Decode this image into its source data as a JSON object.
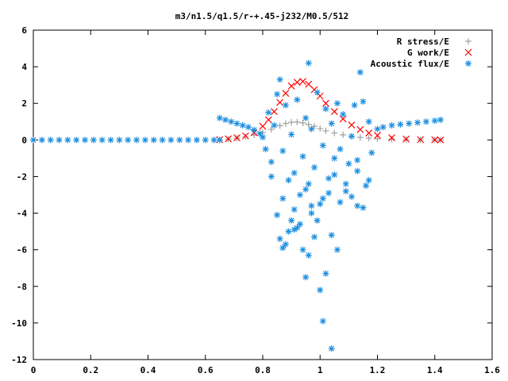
{
  "chart_data": {
    "type": "scatter",
    "title": "m3/n1.5/q1.5/r-+.45-j232/M0.5/512",
    "xlabel": "",
    "ylabel": "",
    "xlim": [
      0,
      1.6
    ],
    "ylim": [
      -12,
      6
    ],
    "xticks": [
      "0",
      "0.2",
      "0.4",
      "0.6",
      "0.8",
      "1",
      "1.2",
      "1.4",
      "1.6"
    ],
    "yticks": [
      "6",
      "4",
      "2",
      "0",
      "-2",
      "-4",
      "-6",
      "-8",
      "-10",
      "-12"
    ],
    "grid": false,
    "legend_position": "top-right",
    "series": [
      {
        "name": "R stress/E",
        "marker": "plus",
        "color": "#a0a0a0",
        "x": [
          0.65,
          0.68,
          0.71,
          0.74,
          0.77,
          0.8,
          0.83,
          0.86,
          0.88,
          0.9,
          0.92,
          0.94,
          0.96,
          0.98,
          1.0,
          1.02,
          1.05,
          1.08,
          1.11,
          1.14,
          1.17,
          1.2,
          1.25,
          1.3,
          1.35,
          1.4,
          1.42
        ],
        "y": [
          0.0,
          0.05,
          0.1,
          0.18,
          0.27,
          0.4,
          0.58,
          0.78,
          0.9,
          0.97,
          0.98,
          0.93,
          0.85,
          0.75,
          0.62,
          0.5,
          0.38,
          0.28,
          0.2,
          0.14,
          0.1,
          0.06,
          0.04,
          0.02,
          0.01,
          0.0,
          0.0
        ]
      },
      {
        "name": "G work/E",
        "marker": "cross",
        "color": "#ff0000",
        "x": [
          0.65,
          0.68,
          0.71,
          0.74,
          0.77,
          0.8,
          0.82,
          0.84,
          0.86,
          0.88,
          0.9,
          0.92,
          0.94,
          0.96,
          0.98,
          1.0,
          1.02,
          1.05,
          1.08,
          1.11,
          1.14,
          1.17,
          1.2,
          1.25,
          1.3,
          1.35,
          1.4,
          1.42
        ],
        "y": [
          0.02,
          0.06,
          0.12,
          0.22,
          0.4,
          0.75,
          1.1,
          1.55,
          2.05,
          2.55,
          2.95,
          3.15,
          3.2,
          3.05,
          2.75,
          2.4,
          2.0,
          1.55,
          1.15,
          0.82,
          0.57,
          0.38,
          0.25,
          0.12,
          0.05,
          0.02,
          0.01,
          0.0
        ]
      },
      {
        "name": "Acoustic flux/E",
        "marker": "star",
        "color": "#1e8fe0",
        "x": [
          0.0,
          0.03,
          0.06,
          0.09,
          0.12,
          0.15,
          0.18,
          0.21,
          0.24,
          0.27,
          0.3,
          0.33,
          0.36,
          0.39,
          0.42,
          0.45,
          0.48,
          0.51,
          0.54,
          0.57,
          0.6,
          0.63,
          0.65,
          0.65,
          0.67,
          0.69,
          0.71,
          0.73,
          0.75,
          0.77,
          0.79,
          0.8,
          1.2,
          1.22,
          1.25,
          1.28,
          1.31,
          1.34,
          1.37,
          1.4,
          1.42,
          0.81,
          0.82,
          0.83,
          0.84,
          0.85,
          0.86,
          0.87,
          0.88,
          0.89,
          0.9,
          0.91,
          0.92,
          0.93,
          0.94,
          0.95,
          0.96,
          0.97,
          0.98,
          0.99,
          1.0,
          1.01,
          1.02,
          1.03,
          1.04,
          1.05,
          1.06,
          1.07,
          1.08,
          1.09,
          1.1,
          1.11,
          1.12,
          1.13,
          1.14,
          1.15,
          1.16,
          1.17,
          1.18,
          0.83,
          0.85,
          0.87,
          0.89,
          0.91,
          0.93,
          0.95,
          0.97,
          0.99,
          1.01,
          1.03,
          1.05,
          1.07,
          1.09,
          1.11,
          1.13,
          1.15,
          1.17,
          0.86,
          0.9,
          0.94,
          0.98,
          1.02,
          1.06,
          0.88,
          0.92,
          0.96,
          1.0,
          0.87,
          0.91,
          0.95,
          0.97,
          1.01,
          1.04,
          0.96,
          1.04,
          1.13
        ],
        "y": [
          0.0,
          0.0,
          0.0,
          0.0,
          0.0,
          0.0,
          0.0,
          0.0,
          0.0,
          0.0,
          0.0,
          0.0,
          0.0,
          0.0,
          0.0,
          0.0,
          0.0,
          0.0,
          0.0,
          0.0,
          0.0,
          0.0,
          0.0,
          1.2,
          1.1,
          1.0,
          0.9,
          0.8,
          0.7,
          0.55,
          0.35,
          0.15,
          0.6,
          0.7,
          0.8,
          0.85,
          0.9,
          0.95,
          1.0,
          1.05,
          1.1,
          -0.5,
          1.5,
          -1.2,
          0.8,
          2.5,
          3.3,
          -0.6,
          1.9,
          -2.2,
          0.3,
          -1.8,
          2.2,
          -3.0,
          -0.9,
          1.2,
          -2.4,
          0.6,
          -1.5,
          2.6,
          -3.5,
          -0.3,
          1.7,
          -2.1,
          0.9,
          -1.0,
          2.0,
          -0.5,
          1.4,
          -2.8,
          -1.3,
          0.2,
          1.9,
          -1.7,
          3.7,
          2.1,
          -2.5,
          1.0,
          -0.7,
          -2.0,
          -4.1,
          -3.2,
          -5.0,
          -3.8,
          -4.6,
          -2.7,
          -3.6,
          -4.4,
          -3.2,
          -2.9,
          -1.9,
          -3.4,
          -2.4,
          -3.1,
          -1.1,
          -3.7,
          -2.2,
          -5.4,
          -4.4,
          -6.0,
          -5.3,
          -7.3,
          -6.0,
          -5.7,
          -4.8,
          -6.3,
          -8.2,
          -5.9,
          -4.9,
          -7.5,
          -4.0,
          -9.9,
          -5.2,
          4.2,
          -11.4,
          -3.6
        ]
      }
    ]
  }
}
